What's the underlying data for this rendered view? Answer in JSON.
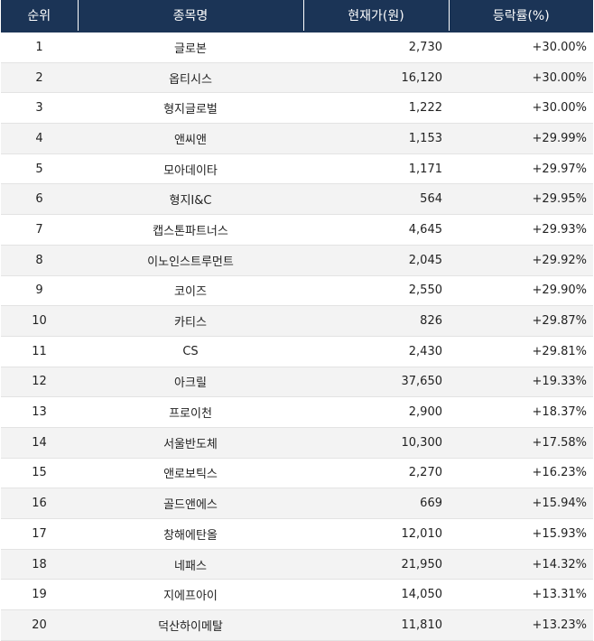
{
  "headers": [
    "순위",
    "종목명",
    "현재가(원)",
    "등락률(%)"
  ],
  "rows": [
    {
      "rank": "1",
      "name": "글로본",
      "price": "2,730",
      "change": "+30.00%"
    },
    {
      "rank": "2",
      "name": "옵티시스",
      "price": "16,120",
      "change": "+30.00%"
    },
    {
      "rank": "3",
      "name": "형지글로벌",
      "price": "1,222",
      "change": "+30.00%"
    },
    {
      "rank": "4",
      "name": "앤씨앤",
      "price": "1,153",
      "change": "+29.99%"
    },
    {
      "rank": "5",
      "name": "모아데이타",
      "price": "1,171",
      "change": "+29.97%"
    },
    {
      "rank": "6",
      "name": "형지I&C",
      "price": "564",
      "change": "+29.95%"
    },
    {
      "rank": "7",
      "name": "캡스톤파트너스",
      "price": "4,645",
      "change": "+29.93%"
    },
    {
      "rank": "8",
      "name": "이노인스트루먼트",
      "price": "2,045",
      "change": "+29.92%"
    },
    {
      "rank": "9",
      "name": "코이즈",
      "price": "2,550",
      "change": "+29.90%"
    },
    {
      "rank": "10",
      "name": "카티스",
      "price": "826",
      "change": "+29.87%"
    },
    {
      "rank": "11",
      "name": "CS",
      "price": "2,430",
      "change": "+29.81%"
    },
    {
      "rank": "12",
      "name": "아크릴",
      "price": "37,650",
      "change": "+19.33%"
    },
    {
      "rank": "13",
      "name": "프로이천",
      "price": "2,900",
      "change": "+18.37%"
    },
    {
      "rank": "14",
      "name": "서울반도체",
      "price": "10,300",
      "change": "+17.58%"
    },
    {
      "rank": "15",
      "name": "앤로보틱스",
      "price": "2,270",
      "change": "+16.23%"
    },
    {
      "rank": "16",
      "name": "골드앤에스",
      "price": "669",
      "change": "+15.94%"
    },
    {
      "rank": "17",
      "name": "창해에탄올",
      "price": "12,010",
      "change": "+15.93%"
    },
    {
      "rank": "18",
      "name": "네패스",
      "price": "21,950",
      "change": "+14.32%"
    },
    {
      "rank": "19",
      "name": "지에프아이",
      "price": "14,050",
      "change": "+13.31%"
    },
    {
      "rank": "20",
      "name": "덕산하이메탈",
      "price": "11,810",
      "change": "+13.23%"
    }
  ],
  "colors": {
    "header_bg": "#1b3456",
    "stripe": "#f3f3f3"
  }
}
